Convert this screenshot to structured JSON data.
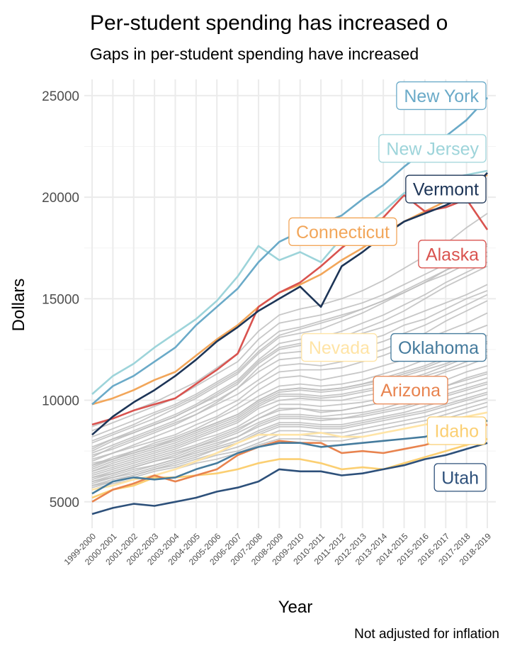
{
  "chart_data": {
    "type": "line",
    "title": "Per-student spending has increased o",
    "subtitle": "Gaps in per-student spending have increased",
    "xlabel": "Year",
    "ylabel": "Dollars",
    "caption": "Not adjusted for inflation",
    "ylim": [
      3700,
      25800
    ],
    "y_ticks": [
      5000,
      10000,
      15000,
      20000,
      25000
    ],
    "x": [
      "1999-2000",
      "2000-2001",
      "2001-2002",
      "2002-2003",
      "2003-2004",
      "2004-2005",
      "2005-2006",
      "2006-2007",
      "2007-2008",
      "2008-2009",
      "2009-2010",
      "2010-2011",
      "2011-2012",
      "2012-2013",
      "2013-2014",
      "2014-2015",
      "2015-2016",
      "2016-2017",
      "2017-2018",
      "2018-2019"
    ],
    "grid": true,
    "legend": "none",
    "highlighted_series": [
      {
        "name": "New York",
        "color": "#6aaac8",
        "values": [
          9800,
          10700,
          11200,
          11900,
          12600,
          13700,
          14600,
          15500,
          16800,
          17800,
          18300,
          18700,
          19100,
          19900,
          20600,
          21500,
          22300,
          23000,
          23800,
          24900
        ],
        "label_value": 25000
      },
      {
        "name": "New Jersey",
        "color": "#9dd4da",
        "values": [
          10300,
          11200,
          11800,
          12600,
          13300,
          14000,
          14900,
          16100,
          17600,
          16900,
          17300,
          16800,
          18000,
          18500,
          19300,
          20200,
          20600,
          20900,
          21100,
          21300
        ],
        "label_value": 22400
      },
      {
        "name": "Vermont",
        "color": "#1d3557",
        "values": [
          8300,
          9200,
          9900,
          10500,
          11200,
          12000,
          12900,
          13600,
          14400,
          15000,
          15600,
          14600,
          16600,
          17300,
          18100,
          18800,
          19200,
          19600,
          20100,
          21200
        ],
        "label_value": 20400
      },
      {
        "name": "Connecticut",
        "color": "#f2a65a",
        "values": [
          9800,
          10100,
          10500,
          11000,
          11400,
          12200,
          13000,
          13700,
          14600,
          15300,
          15700,
          16200,
          16900,
          17500,
          18200,
          18800,
          19300,
          19800,
          20500,
          21100
        ],
        "label_value": 18300
      },
      {
        "name": "Alaska",
        "color": "#d9534f",
        "values": [
          8800,
          9100,
          9500,
          9800,
          10100,
          10800,
          11500,
          12300,
          14600,
          15300,
          15800,
          16600,
          17500,
          18300,
          19000,
          20100,
          19300,
          19500,
          19900,
          18400
        ],
        "label_value": 17200
      },
      {
        "name": "Oklahoma",
        "color": "#457b9d",
        "values": [
          5400,
          6000,
          6200,
          6100,
          6200,
          6600,
          6900,
          7400,
          7700,
          7900,
          7900,
          7700,
          7800,
          7900,
          8000,
          8100,
          8200,
          8500,
          8600,
          9000
        ],
        "label_value": 12600
      },
      {
        "name": "Nevada",
        "color": "#ffe4a6",
        "values": [
          5600,
          5800,
          6100,
          6300,
          6600,
          7000,
          7400,
          7900,
          8300,
          8300,
          8300,
          8400,
          8200,
          8200,
          8400,
          8600,
          8800,
          9000,
          9200,
          9400
        ],
        "label_value": 12600
      },
      {
        "name": "Arizona",
        "color": "#e8834e",
        "values": [
          5000,
          5600,
          5900,
          6300,
          6000,
          6300,
          6600,
          7300,
          7700,
          8000,
          7900,
          7900,
          7400,
          7500,
          7400,
          7600,
          7800,
          8100,
          8400,
          8800
        ],
        "label_value": 10500
      },
      {
        "name": "Idaho",
        "color": "#fbcf72",
        "values": [
          5200,
          5600,
          5800,
          6200,
          6200,
          6300,
          6400,
          6600,
          6900,
          7100,
          7100,
          6900,
          6600,
          6700,
          6600,
          6900,
          7200,
          7500,
          7800,
          8100
        ],
        "label_value": 8500
      },
      {
        "name": "Utah",
        "color": "#2d507a",
        "values": [
          4400,
          4700,
          4900,
          4800,
          5000,
          5200,
          5500,
          5700,
          6000,
          6600,
          6500,
          6500,
          6300,
          6400,
          6600,
          6800,
          7100,
          7300,
          7600,
          7900
        ],
        "label_value": 6200
      }
    ],
    "background_series": {
      "color": "#bdbdbd",
      "values": [
        [
          8200,
          8600,
          9000,
          9400,
          9800,
          10300,
          10900,
          11500,
          12600,
          13400,
          13600,
          13900,
          14200,
          14500,
          14900,
          15400,
          15900,
          16400,
          16800,
          17300
        ],
        [
          7900,
          8300,
          8700,
          9100,
          9600,
          10100,
          10700,
          11300,
          12300,
          13100,
          13300,
          13500,
          13900,
          14300,
          14800,
          15300,
          15800,
          16400,
          17000,
          17600
        ],
        [
          7500,
          8000,
          8400,
          8800,
          9200,
          9700,
          10200,
          10800,
          11800,
          12500,
          12700,
          12900,
          13100,
          13500,
          13900,
          14400,
          15000,
          15600,
          16100,
          16600
        ],
        [
          7200,
          7700,
          8100,
          8500,
          8900,
          9300,
          9800,
          10300,
          11000,
          11700,
          11800,
          11700,
          11900,
          12200,
          12500,
          12900,
          13300,
          13900,
          14400,
          14900
        ],
        [
          7300,
          7600,
          8000,
          8400,
          8800,
          9300,
          9900,
          10600,
          11600,
          12300,
          12400,
          12300,
          12500,
          12900,
          13200,
          13700,
          14000,
          14500,
          15000,
          15400
        ],
        [
          7000,
          7400,
          7800,
          8200,
          8600,
          9000,
          9500,
          10000,
          10800,
          11400,
          11500,
          11500,
          11600,
          11900,
          12200,
          12600,
          13000,
          13400,
          13800,
          14300
        ],
        [
          7100,
          7400,
          7700,
          8000,
          8300,
          8800,
          9200,
          9800,
          10500,
          11100,
          11200,
          11000,
          11200,
          11400,
          11700,
          12000,
          12400,
          12800,
          13300,
          13700
        ],
        [
          6800,
          7200,
          7500,
          7900,
          8200,
          8600,
          9100,
          9600,
          10200,
          10700,
          10800,
          10700,
          10800,
          11000,
          11300,
          11600,
          12000,
          12400,
          12800,
          13200
        ],
        [
          6900,
          7100,
          7400,
          7700,
          8100,
          8500,
          8900,
          9300,
          10000,
          10500,
          10600,
          10500,
          10600,
          10800,
          11100,
          11400,
          11700,
          12100,
          12500,
          12900
        ],
        [
          6600,
          7000,
          7300,
          7600,
          7900,
          8300,
          8700,
          9100,
          9800,
          10300,
          10300,
          10200,
          10300,
          10500,
          10700,
          11000,
          11300,
          11700,
          12100,
          12400
        ],
        [
          6500,
          6800,
          7100,
          7400,
          7700,
          8100,
          8500,
          8900,
          9600,
          10000,
          10100,
          10000,
          10000,
          10200,
          10400,
          10700,
          11000,
          11400,
          11700,
          12100
        ],
        [
          6400,
          6700,
          7000,
          7300,
          7600,
          8000,
          8300,
          8700,
          9300,
          9800,
          9800,
          9700,
          9800,
          9900,
          10100,
          10400,
          10700,
          11000,
          11400,
          11700
        ],
        [
          6300,
          6600,
          6900,
          7200,
          7500,
          7800,
          8200,
          8600,
          9100,
          9500,
          9600,
          9400,
          9500,
          9700,
          9900,
          10100,
          10400,
          10700,
          11100,
          11400
        ],
        [
          6200,
          6500,
          6800,
          7100,
          7400,
          7700,
          8000,
          8400,
          8900,
          9300,
          9300,
          9200,
          9300,
          9400,
          9600,
          9900,
          10200,
          10500,
          10800,
          11100
        ],
        [
          6100,
          6400,
          6700,
          7000,
          7200,
          7600,
          7900,
          8200,
          8700,
          9100,
          9100,
          9000,
          9100,
          9200,
          9400,
          9600,
          9900,
          10200,
          10500,
          10800
        ],
        [
          6000,
          6300,
          6600,
          6800,
          7100,
          7400,
          7700,
          8000,
          8500,
          8900,
          8900,
          8800,
          8800,
          9000,
          9200,
          9400,
          9700,
          10000,
          10300,
          10600
        ],
        [
          5900,
          6200,
          6400,
          6700,
          7000,
          7300,
          7600,
          7900,
          8300,
          8700,
          8700,
          8600,
          8600,
          8800,
          9000,
          9200,
          9400,
          9700,
          10000,
          10300
        ],
        [
          5800,
          6100,
          6300,
          6600,
          6800,
          7100,
          7400,
          7700,
          8100,
          8500,
          8500,
          8400,
          8400,
          8600,
          8800,
          9000,
          9200,
          9500,
          9800,
          10100
        ],
        [
          5700,
          6000,
          6200,
          6500,
          6700,
          7000,
          7300,
          7500,
          7900,
          8300,
          8300,
          8200,
          8200,
          8400,
          8600,
          8800,
          9000,
          9300,
          9600,
          9900
        ],
        [
          5600,
          5900,
          6100,
          6300,
          6600,
          6900,
          7100,
          7400,
          7800,
          8100,
          8100,
          8000,
          8000,
          8200,
          8400,
          8600,
          8800,
          9100,
          9400,
          9700
        ],
        [
          6700,
          7100,
          7400,
          7700,
          8000,
          8400,
          8800,
          9200,
          9900,
          10400,
          10500,
          10400,
          10500,
          10700,
          10900,
          11200,
          11500,
          11800,
          12200,
          12500
        ],
        [
          7600,
          8100,
          8500,
          8900,
          9300,
          9800,
          10400,
          11000,
          12000,
          12800,
          13000,
          13100,
          13400,
          13800,
          14200,
          14700,
          15200,
          15800,
          16300,
          16800
        ],
        [
          8000,
          8400,
          8800,
          9300,
          9700,
          10200,
          10800,
          11400,
          12400,
          13200,
          13500,
          13800,
          14100,
          14500,
          14900,
          15300,
          15800,
          16200,
          16700,
          17100
        ],
        [
          7400,
          7800,
          8200,
          8600,
          9000,
          9500,
          10000,
          10600,
          11400,
          12000,
          12100,
          12100,
          12300,
          12600,
          12900,
          13300,
          13700,
          14200,
          14700,
          15200
        ],
        [
          6800,
          7100,
          7500,
          7800,
          8100,
          8500,
          8900,
          9300,
          10000,
          10500,
          10600,
          10500,
          10600,
          10800,
          11000,
          11300,
          11600,
          12000,
          12400,
          12800
        ],
        [
          6200,
          6400,
          6700,
          7000,
          7300,
          7700,
          8100,
          8500,
          9100,
          9600,
          9600,
          9500,
          9500,
          9700,
          9900,
          10100,
          10400,
          10700,
          11000,
          11300
        ],
        [
          6000,
          6200,
          6500,
          6800,
          7100,
          7500,
          7800,
          8200,
          8800,
          9200,
          9200,
          9100,
          9100,
          9300,
          9500,
          9700,
          10000,
          10300,
          10600,
          10900
        ],
        [
          5800,
          6000,
          6300,
          6600,
          6900,
          7200,
          7600,
          7900,
          8400,
          8800,
          8800,
          8700,
          8700,
          8900,
          9100,
          9300,
          9500,
          9800,
          10100,
          10400
        ],
        [
          8500,
          8900,
          9300,
          9700,
          10100,
          10700,
          11300,
          11900,
          13000,
          13800,
          14000,
          14200,
          14500,
          14800,
          15200,
          15700,
          16200,
          16700,
          17200,
          17700
        ],
        [
          8700,
          9100,
          9500,
          9900,
          10400,
          10900,
          11600,
          12300,
          13400,
          14200,
          14500,
          14700,
          15000,
          15400,
          15900,
          16500,
          17100,
          17700,
          18500,
          19200
        ],
        [
          7700,
          8100,
          8400,
          8800,
          9200,
          9700,
          10300,
          10900,
          11900,
          12600,
          12800,
          12800,
          13000,
          13300,
          13600,
          14000,
          14400,
          14800,
          15200,
          15700
        ],
        [
          6500,
          6900,
          7200,
          7500,
          7800,
          8200,
          8600,
          9000,
          9700,
          10200,
          10200,
          10100,
          10200,
          10400,
          10600,
          10900,
          11200,
          11500,
          11900,
          12200
        ]
      ]
    }
  }
}
